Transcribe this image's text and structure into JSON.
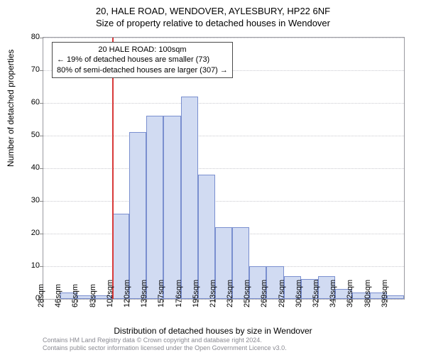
{
  "title_main": "20, HALE ROAD, WENDOVER, AYLESBURY, HP22 6NF",
  "title_sub": "Size of property relative to detached houses in Wendover",
  "chart": {
    "type": "histogram",
    "background_color": "#ffffff",
    "axis_color": "#9a9aa0",
    "grid_color": "#c9c9cf",
    "bar_fill_color": "#d1dbf2",
    "bar_border_color": "#7a8fcf",
    "marker_color": "#d83a3a",
    "ylabel": "Number of detached properties",
    "xlabel": "Distribution of detached houses by size in Wendover",
    "label_fontsize": 12,
    "tick_fontsize": 11,
    "ylim": [
      0,
      80
    ],
    "ytick_step": 10,
    "x_ticks": [
      "28sqm",
      "46sqm",
      "65sqm",
      "83sqm",
      "102sqm",
      "120sqm",
      "139sqm",
      "157sqm",
      "176sqm",
      "195sqm",
      "213sqm",
      "232sqm",
      "250sqm",
      "269sqm",
      "287sqm",
      "306sqm",
      "325sqm",
      "343sqm",
      "362sqm",
      "380sqm",
      "399sqm"
    ],
    "values": [
      0,
      2,
      1,
      1,
      26,
      51,
      56,
      56,
      62,
      38,
      22,
      22,
      10,
      10,
      7,
      6,
      7,
      3,
      2,
      2,
      1
    ],
    "marker_index": 4,
    "annotation": {
      "line1": "20 HALE ROAD: 100sqm",
      "line2": "← 19% of detached houses are smaller (73)",
      "line3": "80% of semi-detached houses are larger (307) →"
    }
  },
  "footer": {
    "line1": "Contains HM Land Registry data © Crown copyright and database right 2024.",
    "line2": "Contains public sector information licensed under the Open Government Licence v3.0."
  }
}
